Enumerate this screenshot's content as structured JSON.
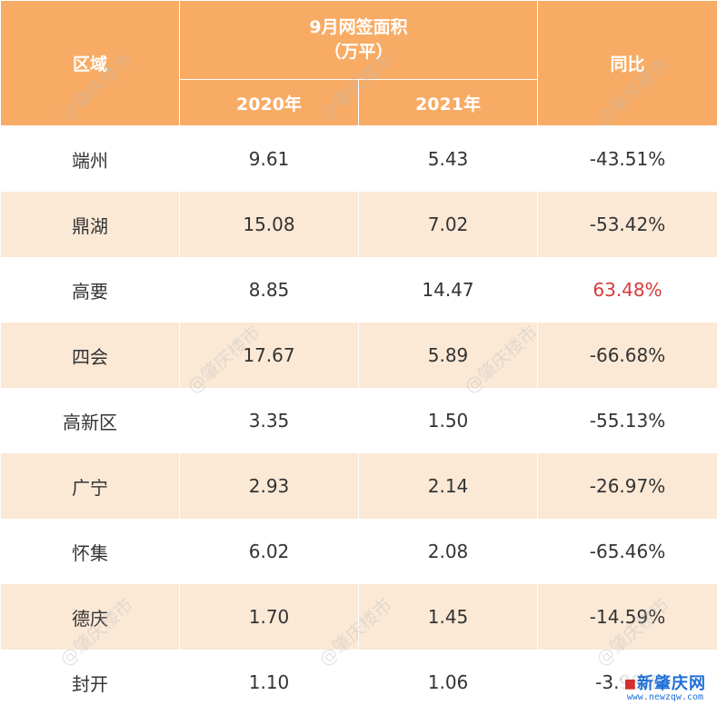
{
  "table": {
    "header": {
      "region": "区域",
      "metric_line1": "9月网签面积",
      "metric_line2": "（万平）",
      "yoy": "同比",
      "year_2020": "2020年",
      "year_2021": "2021年"
    },
    "rows": [
      {
        "region": "端州",
        "v2020": "9.61",
        "v2021": "5.43",
        "yoy": "-43.51%"
      },
      {
        "region": "鼎湖",
        "v2020": "15.08",
        "v2021": "7.02",
        "yoy": "-53.42%"
      },
      {
        "region": "高要",
        "v2020": "8.85",
        "v2021": "14.47",
        "yoy": "63.48%"
      },
      {
        "region": "四会",
        "v2020": "17.67",
        "v2021": "5.89",
        "yoy": "-66.68%"
      },
      {
        "region": "高新区",
        "v2020": "3.35",
        "v2021": "1.50",
        "yoy": "-55.13%"
      },
      {
        "region": "广宁",
        "v2020": "2.93",
        "v2021": "2.14",
        "yoy": "-26.97%"
      },
      {
        "region": "怀集",
        "v2020": "6.02",
        "v2021": "2.08",
        "yoy": "-65.46%"
      },
      {
        "region": "德庆",
        "v2020": "1.70",
        "v2021": "1.45",
        "yoy": "-14.59%"
      },
      {
        "region": "封开",
        "v2020": "1.10",
        "v2021": "1.06",
        "yoy": "-3.98%"
      }
    ]
  },
  "watermark_text": "@肇庆楼市",
  "logo": {
    "name": "新肇庆网",
    "url": "www.newzqw.com"
  },
  "colors": {
    "header_bg": "#f8ab64",
    "stripe_bg": "#fbe9d6",
    "positive_text": "#d63a3a",
    "body_text": "#333333"
  }
}
